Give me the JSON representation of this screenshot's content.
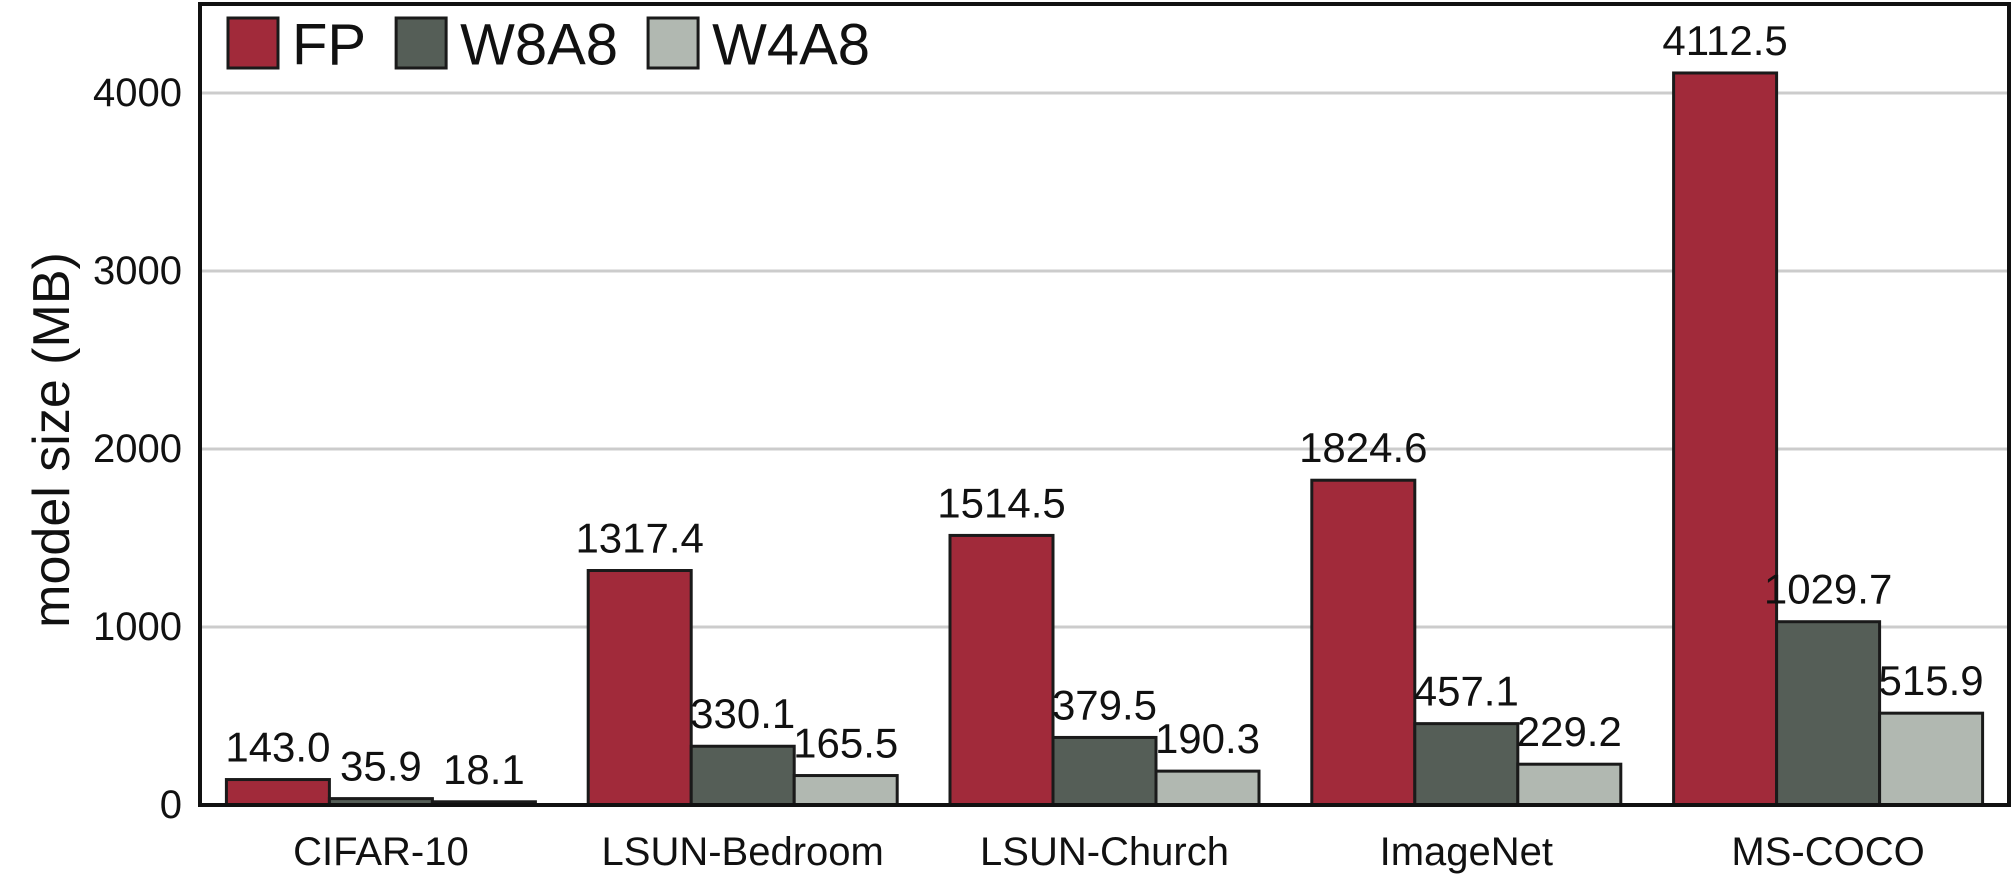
{
  "chart_data": {
    "type": "bar",
    "ylabel": "model size (MB)",
    "xlabel": "",
    "ylim": [
      0,
      4500
    ],
    "yticks": [
      0,
      1000,
      2000,
      3000,
      4000
    ],
    "grid": true,
    "legend_position": "top-left",
    "categories": [
      "CIFAR-10",
      "LSUN-Bedroom",
      "LSUN-Church",
      "ImageNet",
      "MS-COCO"
    ],
    "series": [
      {
        "name": "FP",
        "color": "#a12a3a",
        "values": [
          143.0,
          1317.4,
          1514.5,
          1824.6,
          4112.5
        ],
        "labels": [
          "143.0",
          "1317.4",
          "1514.5",
          "1824.6",
          "4112.5"
        ]
      },
      {
        "name": "W8A8",
        "color": "#555e57",
        "values": [
          35.9,
          330.1,
          379.5,
          457.1,
          1029.7
        ],
        "labels": [
          "35.9",
          "330.1",
          "379.5",
          "457.1",
          "1029.7"
        ]
      },
      {
        "name": "W4A8",
        "color": "#b1b8b1",
        "values": [
          18.1,
          165.5,
          190.3,
          229.2,
          515.9
        ],
        "labels": [
          "18.1",
          "165.5",
          "190.3",
          "229.2",
          "515.9"
        ]
      }
    ]
  }
}
